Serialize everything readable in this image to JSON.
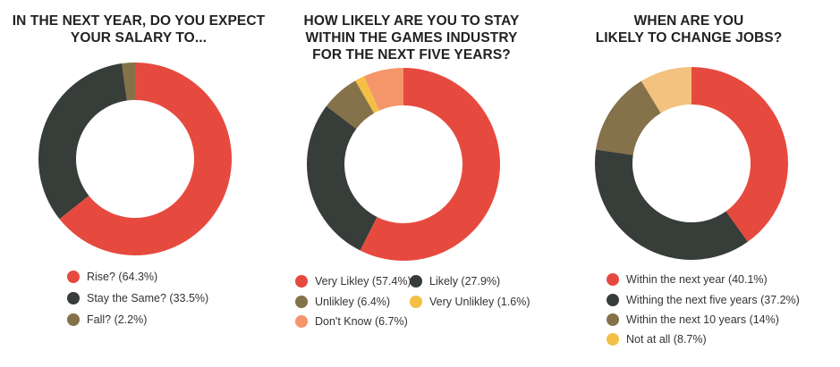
{
  "colors": {
    "red": "#E64A3F",
    "dark": "#373D39",
    "olive": "#85714A",
    "orange": "#F4956A",
    "yellow": "#F3BF45",
    "tan": "#F3C27E"
  },
  "chart_data": [
    {
      "type": "pie",
      "title_lines": [
        "IN THE NEXT YEAR, DO YOU EXPECT",
        "YOUR SALARY TO..."
      ],
      "slices": [
        {
          "label": "Rise?",
          "value": 64.3,
          "color": "#E64A3F"
        },
        {
          "label": "Stay the Same?",
          "value": 33.5,
          "color": "#373D39"
        },
        {
          "label": "Fall?",
          "value": 2.2,
          "color": "#85714A"
        }
      ],
      "legend": [
        "Rise? (64.3%)",
        "Stay the Same? (33.5%)",
        "Fall? (2.2%)"
      ]
    },
    {
      "type": "pie",
      "title_lines": [
        "HOW LIKELY ARE YOU TO STAY",
        "WITHIN THE GAMES INDUSTRY",
        "FOR THE NEXT FIVE YEARS?"
      ],
      "slices": [
        {
          "label": "Very Likley",
          "value": 57.4,
          "color": "#E64A3F"
        },
        {
          "label": "Likely",
          "value": 27.9,
          "color": "#373D39"
        },
        {
          "label": "Unlikley",
          "value": 6.4,
          "color": "#85714A"
        },
        {
          "label": "Very Unlikley",
          "value": 1.6,
          "color": "#F3BF45"
        },
        {
          "label": "Don't Know",
          "value": 6.7,
          "color": "#F4956A"
        }
      ],
      "legend": [
        "Very Likley (57.4%)",
        "Likely (27.9%)",
        "Unlikley (6.4%)",
        "Very Unlikley (1.6%)",
        "Don't Know (6.7%)"
      ]
    },
    {
      "type": "pie",
      "title_lines": [
        "WHEN ARE YOU",
        "LIKELY TO CHANGE JOBS?"
      ],
      "slices": [
        {
          "label": "Within the next year",
          "value": 40.1,
          "color": "#E64A3F"
        },
        {
          "label": "Withing the next five years",
          "value": 37.2,
          "color": "#373D39"
        },
        {
          "label": "Within the next 10 years",
          "value": 14,
          "color": "#85714A"
        },
        {
          "label": "Not at all",
          "value": 8.7,
          "color": "#F3C27E"
        }
      ],
      "legend": [
        "Within the next year (40.1%)",
        "Withing the next five years (37.2%)",
        "Within the next 10 years (14%)",
        "Not at all (8.7%)"
      ],
      "legend_dot_colors": [
        "#E64A3F",
        "#373D39",
        "#85714A",
        "#F3BF45"
      ]
    }
  ]
}
